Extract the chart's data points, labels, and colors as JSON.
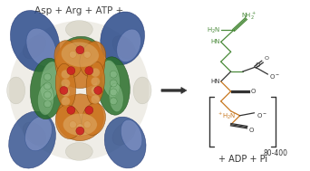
{
  "background_color": "#ffffff",
  "title_text": "Asp + Arg + ATP +",
  "title_fontsize": 7.5,
  "title_color": "#444444",
  "adp_text": "+ ADP + Pi",
  "adp_fontsize": 7.0,
  "bracket_label": "80-400",
  "green_color": "#4a8a3a",
  "orange_color": "#c87820",
  "dark_color": "#333333",
  "protein_colors": {
    "orange": "#cc7722",
    "green": "#2a6e2a",
    "blue": "#2a4a8a",
    "light_green": "#88bb88",
    "light_blue": "#8899cc",
    "light_orange": "#ddaa66",
    "red": "#cc2222",
    "bg": "#e8e4da"
  }
}
